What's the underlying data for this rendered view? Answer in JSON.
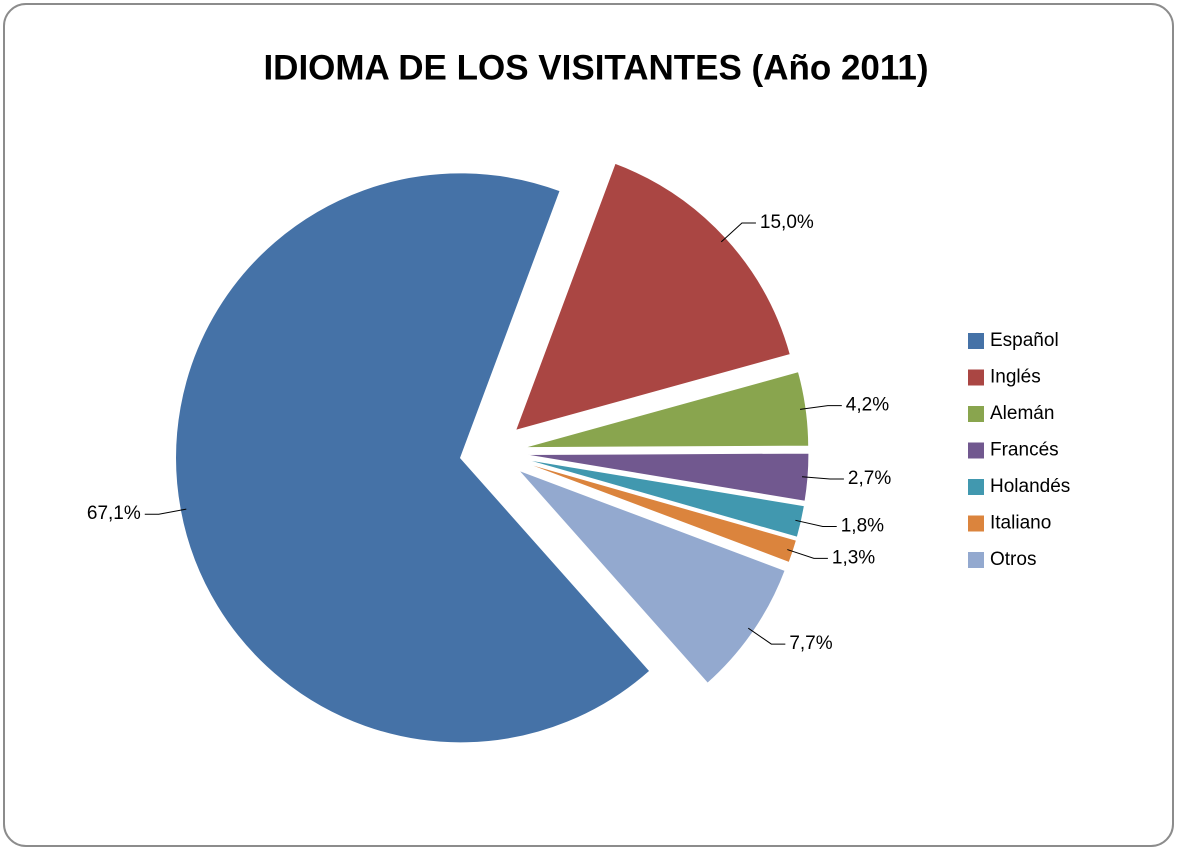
{
  "chart_data": {
    "type": "pie",
    "title": "IDIOMA DE LOS VISITANTES (Año 2011)",
    "categories": [
      "Español",
      "Inglés",
      "Alemán",
      "Francés",
      "Holandés",
      "Italiano",
      "Otros"
    ],
    "values": [
      67.1,
      15.0,
      4.2,
      2.7,
      1.8,
      1.3,
      7.7
    ],
    "value_labels": [
      "67,1%",
      "15,0%",
      "4,2%",
      "2,7%",
      "1,8%",
      "1,3%",
      "7,7%"
    ],
    "colors": [
      "#4572a7",
      "#aa4643",
      "#89a54e",
      "#71588f",
      "#4198af",
      "#db843d",
      "#93a9cf"
    ],
    "legend": "right"
  }
}
